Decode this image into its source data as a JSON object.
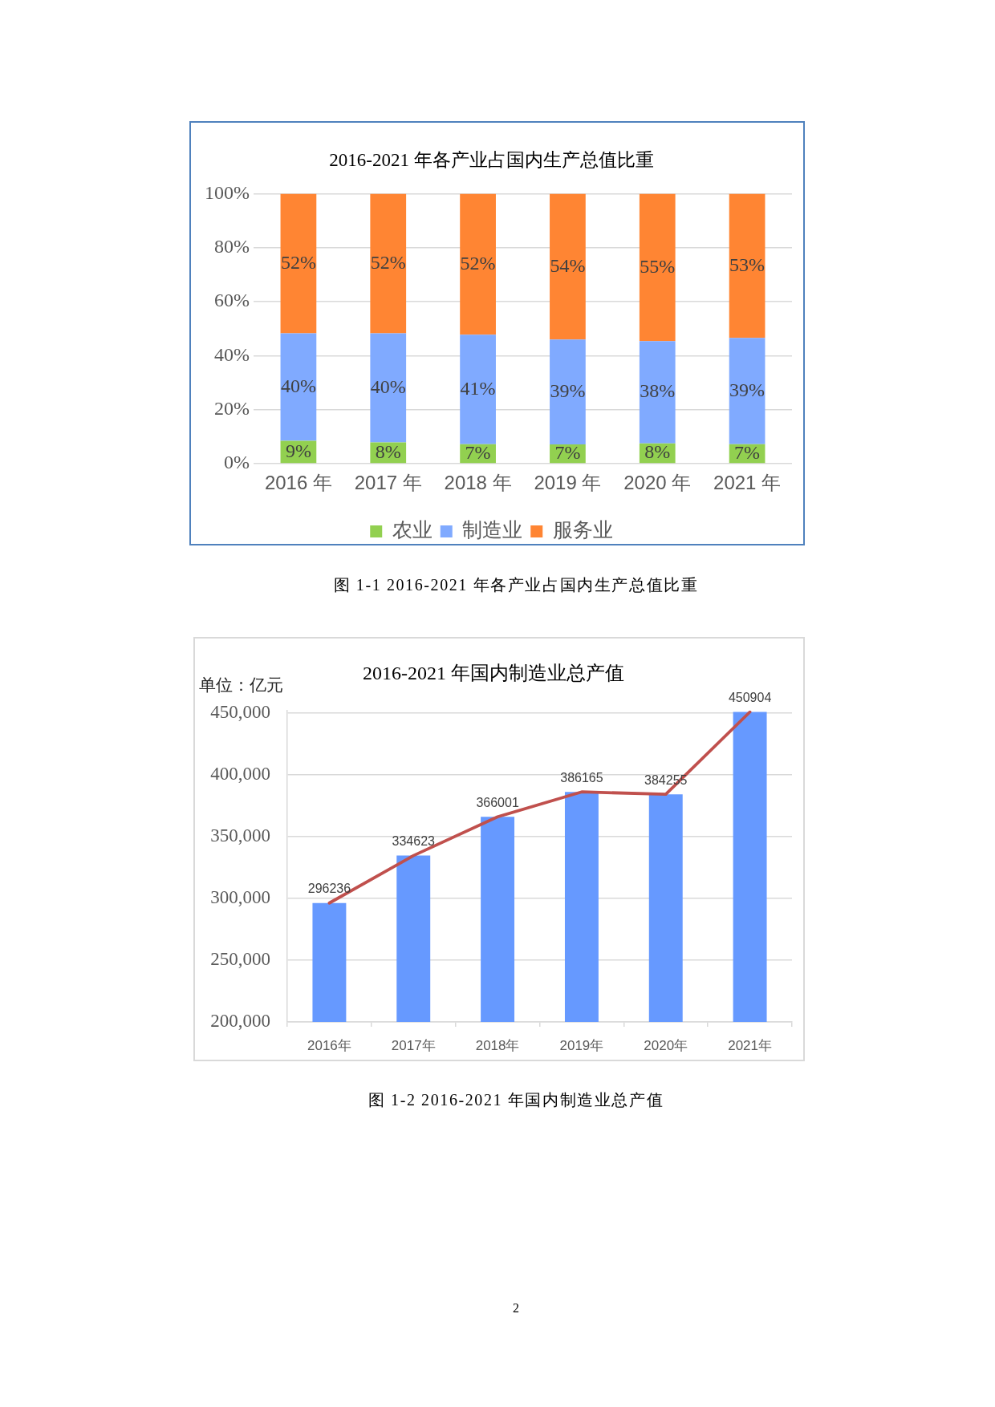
{
  "chart_data": [
    {
      "type": "bar",
      "title": "2016-2021 年各产业占国内生产总值比重",
      "categories": [
        "2016 年",
        "2017 年",
        "2018 年",
        "2019 年",
        "2020 年",
        "2021 年"
      ],
      "stacked": true,
      "series": [
        {
          "name": "农业",
          "color": "#92d050",
          "values": [
            8.5,
            7.9,
            7.2,
            7.1,
            7.5,
            7.2
          ],
          "value_labels": [
            "9%",
            "8%",
            "7%",
            "7%",
            "8%",
            "7%"
          ]
        },
        {
          "name": "制造业",
          "color": "#80aaff",
          "values": [
            39.8,
            40.4,
            40.6,
            38.9,
            37.9,
            39.4
          ],
          "value_labels": [
            "40%",
            "40%",
            "41%",
            "39%",
            "38%",
            "39%"
          ]
        },
        {
          "name": "服务业",
          "color": "#ff8533",
          "values": [
            51.7,
            51.7,
            52.2,
            54.0,
            54.6,
            53.4
          ],
          "value_labels": [
            "52%",
            "52%",
            "52%",
            "54%",
            "55%",
            "53%"
          ]
        }
      ],
      "ylim": [
        0,
        100
      ],
      "yticks": [
        {
          "value": 0,
          "label": "0%"
        },
        {
          "value": 20,
          "label": "20%"
        },
        {
          "value": 40,
          "label": "40%"
        },
        {
          "value": 60,
          "label": "60%"
        },
        {
          "value": 80,
          "label": "80%"
        },
        {
          "value": 100,
          "label": "100%"
        }
      ],
      "grid": "y",
      "legend": "bottom",
      "annotations": [
        "图 1-1 2016-2021 年各产业占国内生产总值比重"
      ]
    },
    {
      "type": "bar",
      "title": "2016-2021 年国内制造业总产值",
      "ylabel": "单位：亿元",
      "categories": [
        "2016年",
        "2017年",
        "2018年",
        "2019年",
        "2020年",
        "2021年"
      ],
      "series": [
        {
          "color": "#6699ff",
          "values": [
            296236,
            334623,
            366001,
            386165,
            384255,
            450904
          ],
          "value_labels": [
            "296236",
            "334623",
            "366001",
            "386165",
            "384255",
            "450904"
          ]
        },
        {
          "type": "line",
          "color": "#c0504d",
          "values": [
            296236,
            334623,
            366001,
            386165,
            384255,
            450904
          ]
        }
      ],
      "ylim": [
        200000,
        452000
      ],
      "yticks": [
        {
          "value": 200000,
          "label": "200,000"
        },
        {
          "value": 250000,
          "label": "250,000"
        },
        {
          "value": 300000,
          "label": "300,000"
        },
        {
          "value": 350000,
          "label": "350,000"
        },
        {
          "value": 400000,
          "label": "400,000"
        },
        {
          "value": 450000,
          "label": "450,000"
        }
      ],
      "grid": "y",
      "legend": false,
      "marker": "none",
      "annotations": [
        "图 1-2 2016-2021 年国内制造业总产值",
        "2"
      ]
    }
  ]
}
